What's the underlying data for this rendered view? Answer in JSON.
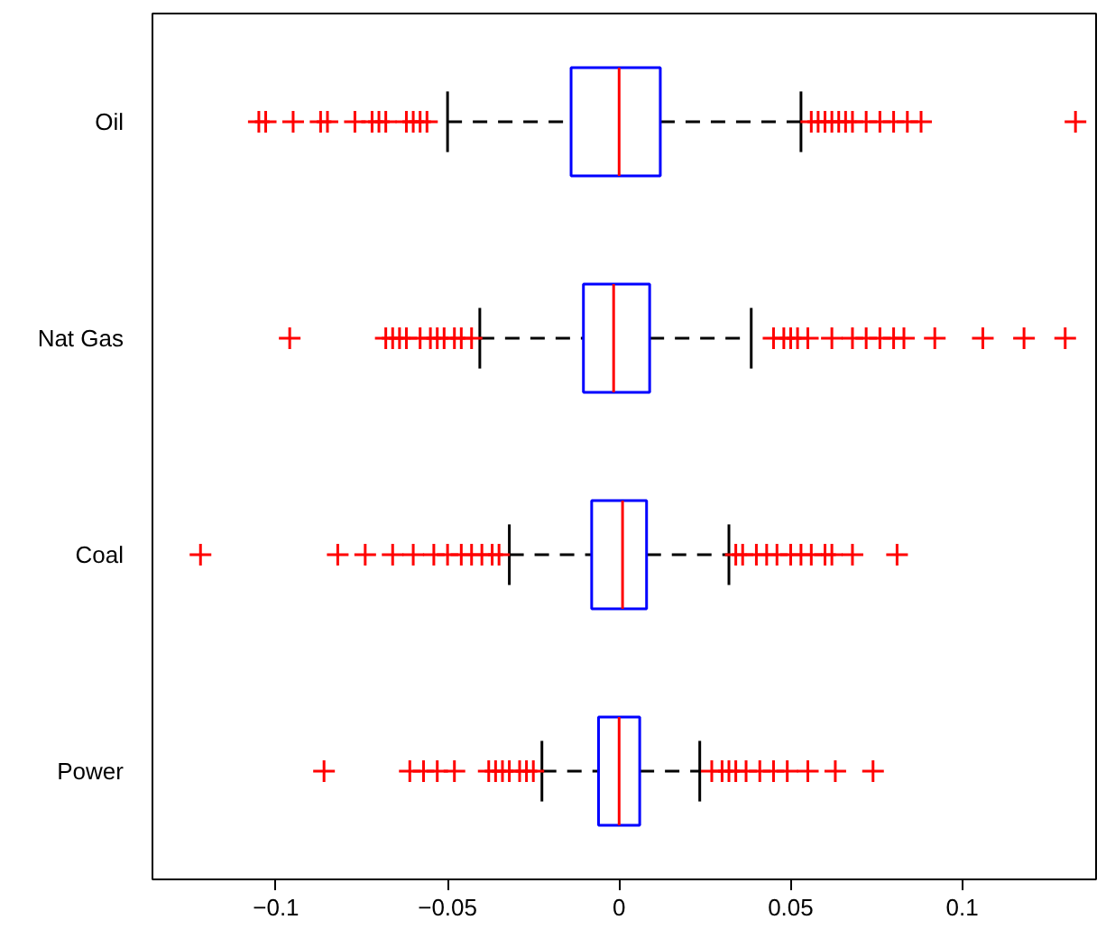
{
  "chart_data": {
    "type": "box",
    "orientation": "horizontal",
    "categories": [
      "Oil",
      "Nat Gas",
      "Coal",
      "Power"
    ],
    "xlim": [
      -0.136,
      0.139
    ],
    "xticks": [
      -0.1,
      -0.05,
      0,
      0.05,
      0.1
    ],
    "grid": false,
    "marker": "cross",
    "series": [
      {
        "color": "#0000ff",
        "boxes": [
          {
            "low": -0.05,
            "q1": -0.014,
            "median": 0,
            "q3": 0.012,
            "high": 0.053,
            "outliers": [
              -0.105,
              -0.103,
              -0.095,
              -0.087,
              -0.085,
              -0.077,
              -0.072,
              -0.07,
              -0.068,
              -0.062,
              -0.06,
              -0.058,
              -0.056,
              0.056,
              0.058,
              0.06,
              0.062,
              0.064,
              0.066,
              0.068,
              0.072,
              0.076,
              0.08,
              0.084,
              0.088,
              0.133
            ]
          },
          {
            "low": -0.0406,
            "q1": -0.0104,
            "median": -0.0016,
            "q3": 0.0089,
            "high": 0.0385,
            "outliers": [
              -0.096,
              -0.068,
              -0.066,
              -0.064,
              -0.062,
              -0.058,
              -0.055,
              -0.053,
              -0.051,
              -0.048,
              -0.046,
              -0.043,
              0.045,
              0.048,
              0.05,
              0.052,
              0.055,
              0.062,
              0.068,
              0.072,
              0.076,
              0.08,
              0.083,
              0.092,
              0.106,
              0.118,
              0.13
            ]
          },
          {
            "low": -0.032,
            "q1": -0.008,
            "median": 0.001,
            "q3": 0.008,
            "high": 0.032,
            "outliers": [
              -0.122,
              -0.082,
              -0.074,
              -0.066,
              -0.06,
              -0.054,
              -0.05,
              -0.046,
              -0.043,
              -0.04,
              -0.037,
              -0.035,
              0.034,
              0.036,
              0.04,
              0.043,
              0.046,
              0.05,
              0.053,
              0.056,
              0.06,
              0.062,
              0.068,
              0.081
            ]
          },
          {
            "low": -0.0225,
            "q1": -0.006,
            "median": 0,
            "q3": 0.006,
            "high": 0.0235,
            "outliers": [
              -0.086,
              -0.061,
              -0.057,
              -0.053,
              -0.048,
              -0.038,
              -0.036,
              -0.034,
              -0.032,
              -0.029,
              -0.027,
              -0.025,
              0.027,
              0.03,
              0.032,
              0.034,
              0.037,
              0.041,
              0.045,
              0.049,
              0.055,
              0.063,
              0.074
            ]
          }
        ]
      }
    ]
  }
}
